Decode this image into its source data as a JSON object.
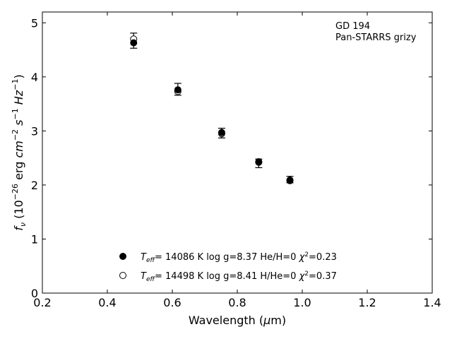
{
  "chart_data": {
    "type": "scatter",
    "annotation": [
      "GD 194",
      "Pan-STARRS grizy"
    ],
    "xlabel": "Wavelength (μm)",
    "ylabel": "f_ν (10^-26 erg cm^-2 s^-1 Hz^-1)",
    "xlim": [
      0.2,
      1.4
    ],
    "ylim": [
      0,
      5.2
    ],
    "xticks": [
      "0.2",
      "0.4",
      "0.6",
      "0.8",
      "1.0",
      "1.2",
      "1.4"
    ],
    "yticks": [
      "0",
      "1",
      "2",
      "3",
      "4",
      "5"
    ],
    "observed": {
      "x": [
        0.481,
        0.617,
        0.752,
        0.866,
        0.962
      ],
      "y": [
        4.67,
        3.77,
        2.96,
        2.4,
        2.1
      ],
      "err": [
        0.14,
        0.11,
        0.09,
        0.08,
        0.06
      ]
    },
    "series": [
      {
        "name": "Teff= 14086 K  log g=8.37  He/H=0  χ2=0.23",
        "marker": "filled-circle",
        "values": [
          4.63,
          3.76,
          2.97,
          2.43,
          2.08
        ]
      },
      {
        "name": "Teff= 14498 K  log g=8.41  H/He=0  χ2=0.37",
        "marker": "open-circle",
        "values": [
          4.7,
          3.73,
          2.95,
          2.42,
          2.09
        ]
      }
    ],
    "legend": {
      "placement": "bottom-center",
      "entries": [
        {
          "teff": "14086 K",
          "rest": "log g=8.37  He/H=0",
          "chi": "=0.23"
        },
        {
          "teff": "14498 K",
          "rest": "log g=8.41  H/He=0",
          "chi": "=0.37"
        }
      ]
    },
    "grid": false
  }
}
